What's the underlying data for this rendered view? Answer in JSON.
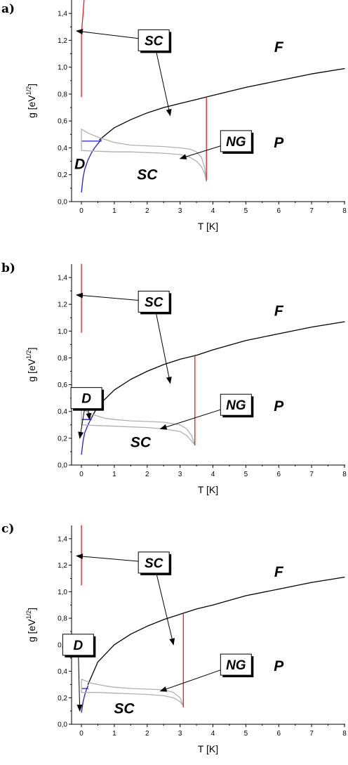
{
  "chart_data": [
    {
      "type": "line",
      "panel_label": "a)",
      "xlabel": "T [K]",
      "ylabel": "g [eV^{1/2}]",
      "xlim": [
        -0.3,
        8
      ],
      "ylim": [
        0,
        1.5
      ],
      "x_ticks": [
        0,
        1,
        2,
        3,
        4,
        5,
        6,
        7,
        8
      ],
      "y_ticks": [
        "0,0",
        "0,2",
        "0,4",
        "0,6",
        "0,8",
        "1,0",
        "1,2",
        "1,4"
      ],
      "series": [
        {
          "color": "#000000",
          "x": [
            0.55,
            1.0,
            1.5,
            2.0,
            2.5,
            3.0,
            3.5,
            4.0,
            5.0,
            6.0,
            7.0,
            8.0
          ],
          "y": [
            0.46,
            0.55,
            0.61,
            0.66,
            0.7,
            0.73,
            0.76,
            0.79,
            0.85,
            0.9,
            0.95,
            0.99
          ]
        },
        {
          "color": "#1f1fcc",
          "x": [
            0.0,
            0.05,
            0.1,
            0.2,
            0.3,
            0.4,
            0.5,
            0.6
          ],
          "y": [
            0.07,
            0.18,
            0.24,
            0.31,
            0.36,
            0.4,
            0.43,
            0.46
          ]
        },
        {
          "color": "#1f1fcc",
          "x": [
            0.0,
            0.6
          ],
          "y": [
            0.45,
            0.45
          ]
        },
        {
          "color": "#b0b0b0",
          "x": [
            0.0,
            0.0,
            0.2,
            0.5,
            1.0,
            1.5,
            2.0,
            2.5,
            3.0,
            3.3,
            3.5,
            3.65,
            3.75,
            3.8
          ],
          "y": [
            0.42,
            0.54,
            0.51,
            0.48,
            0.44,
            0.42,
            0.415,
            0.41,
            0.4,
            0.39,
            0.37,
            0.33,
            0.25,
            0.15
          ]
        },
        {
          "color": "#b0b0b0",
          "x": [
            0.0,
            0.0,
            0.5,
            1.0,
            1.5,
            2.0,
            2.5,
            3.0,
            3.3,
            3.5,
            3.65,
            3.75,
            3.8
          ],
          "y": [
            0.42,
            0.38,
            0.375,
            0.37,
            0.37,
            0.365,
            0.36,
            0.35,
            0.33,
            0.3,
            0.26,
            0.21,
            0.15
          ]
        },
        {
          "color": "#e02020",
          "x": [
            3.8,
            3.8
          ],
          "y": [
            0.16,
            0.77
          ]
        },
        {
          "color": "#e02020",
          "x": [
            0.0,
            0.0,
            0.05,
            0.08
          ],
          "y": [
            0.78,
            1.25,
            1.4,
            1.5
          ]
        }
      ],
      "annotations": [
        {
          "text": "SC",
          "boxed": true,
          "x": 2.2,
          "y": 1.2,
          "arrows_to": [
            [
              -0.15,
              1.27
            ],
            [
              2.7,
              0.64
            ]
          ]
        },
        {
          "text": "NG",
          "boxed": true,
          "x": 4.7,
          "y": 0.45,
          "arrows_to": [
            [
              3.0,
              0.32
            ]
          ]
        },
        {
          "text": "F",
          "boxed": false,
          "x": 6.0,
          "y": 1.15
        },
        {
          "text": "P",
          "boxed": false,
          "x": 6.0,
          "y": 0.44
        },
        {
          "text": "SC",
          "boxed": false,
          "x": 2.0,
          "y": 0.2
        },
        {
          "text": "D",
          "boxed": false,
          "x": -0.05,
          "y": 0.28
        }
      ]
    },
    {
      "type": "line",
      "panel_label": "b)",
      "xlabel": "T [K]",
      "ylabel": "g [eV^{1/2}]",
      "xlim": [
        -0.3,
        8
      ],
      "ylim": [
        0,
        1.5
      ],
      "x_ticks": [
        0,
        1,
        2,
        3,
        4,
        5,
        6,
        7,
        8
      ],
      "y_ticks": [
        "0,0",
        "0,2",
        "0,4",
        "0,6",
        "0,8",
        "1,0",
        "1,2",
        "1,4"
      ],
      "series": [
        {
          "color": "#000000",
          "x": [
            0.3,
            0.5,
            1.0,
            1.5,
            2.0,
            2.5,
            3.0,
            3.5,
            4.0,
            5.0,
            6.0,
            7.0,
            8.0
          ],
          "y": [
            0.35,
            0.44,
            0.56,
            0.64,
            0.7,
            0.75,
            0.79,
            0.82,
            0.86,
            0.93,
            0.98,
            1.03,
            1.07
          ]
        },
        {
          "color": "#1f1fcc",
          "x": [
            0.0,
            0.05,
            0.1,
            0.2,
            0.3
          ],
          "y": [
            0.08,
            0.18,
            0.24,
            0.3,
            0.35
          ]
        },
        {
          "color": "#1f1fcc",
          "x": [
            0.0,
            0.3
          ],
          "y": [
            0.34,
            0.34
          ]
        },
        {
          "color": "#b0b0b0",
          "x": [
            0.0,
            0.0,
            0.3,
            0.7,
            1.0,
            1.5,
            2.0,
            2.5,
            3.0,
            3.2,
            3.35,
            3.45
          ],
          "y": [
            0.3,
            0.42,
            0.38,
            0.35,
            0.34,
            0.33,
            0.325,
            0.32,
            0.3,
            0.27,
            0.22,
            0.15
          ]
        },
        {
          "color": "#b0b0b0",
          "x": [
            0.0,
            0.0,
            0.5,
            1.0,
            1.5,
            2.0,
            2.5,
            3.0,
            3.2,
            3.35,
            3.45
          ],
          "y": [
            0.3,
            0.3,
            0.295,
            0.29,
            0.285,
            0.28,
            0.27,
            0.25,
            0.22,
            0.18,
            0.15
          ]
        },
        {
          "color": "#e02020",
          "x": [
            3.45,
            3.45
          ],
          "y": [
            0.15,
            0.82
          ]
        },
        {
          "color": "#e02020",
          "x": [
            0.0,
            0.0
          ],
          "y": [
            0.99,
            1.5
          ]
        }
      ],
      "annotations": [
        {
          "text": "SC",
          "boxed": true,
          "x": 2.2,
          "y": 1.22,
          "arrows_to": [
            [
              -0.15,
              1.27
            ],
            [
              2.7,
              0.61
            ]
          ]
        },
        {
          "text": "NG",
          "boxed": true,
          "x": 4.7,
          "y": 0.45,
          "arrows_to": [
            [
              2.4,
              0.27
            ]
          ]
        },
        {
          "text": "F",
          "boxed": false,
          "x": 6.0,
          "y": 1.15
        },
        {
          "text": "P",
          "boxed": false,
          "x": 6.0,
          "y": 0.44
        },
        {
          "text": "SC",
          "boxed": false,
          "x": 1.8,
          "y": 0.17
        },
        {
          "text": "D",
          "boxed": true,
          "x": 0.15,
          "y": 0.5,
          "arrows_to": [
            [
              -0.05,
              0.2
            ],
            [
              0.25,
              0.34
            ]
          ]
        }
      ]
    },
    {
      "type": "line",
      "panel_label": "c)",
      "xlabel": "T [K]",
      "ylabel": "g [eV^{1/2}]",
      "xlim": [
        -0.3,
        8
      ],
      "ylim": [
        0,
        1.5
      ],
      "x_ticks": [
        0,
        1,
        2,
        3,
        4,
        5,
        6,
        7,
        8
      ],
      "y_ticks": [
        "0,0",
        "0,2",
        "0,4",
        "0,6",
        "0,8",
        "1,0",
        "1,2",
        "1,4"
      ],
      "series": [
        {
          "color": "#000000",
          "x": [
            0.2,
            0.5,
            1.0,
            1.5,
            2.0,
            2.5,
            3.0,
            3.5,
            4.0,
            5.0,
            6.0,
            7.0,
            8.0
          ],
          "y": [
            0.3,
            0.47,
            0.6,
            0.68,
            0.74,
            0.79,
            0.83,
            0.87,
            0.9,
            0.97,
            1.02,
            1.07,
            1.11
          ]
        },
        {
          "color": "#1f1fcc",
          "x": [
            0.0,
            0.05,
            0.1,
            0.15,
            0.2
          ],
          "y": [
            0.09,
            0.17,
            0.22,
            0.26,
            0.29
          ]
        },
        {
          "color": "#1f1fcc",
          "x": [
            0.0,
            0.2
          ],
          "y": [
            0.27,
            0.27
          ]
        },
        {
          "color": "#b0b0b0",
          "x": [
            0.0,
            0.0,
            0.3,
            0.7,
            1.0,
            1.5,
            2.0,
            2.5,
            2.8,
            3.0,
            3.1
          ],
          "y": [
            0.25,
            0.34,
            0.31,
            0.29,
            0.28,
            0.27,
            0.265,
            0.26,
            0.24,
            0.2,
            0.14
          ]
        },
        {
          "color": "#b0b0b0",
          "x": [
            0.0,
            0.0,
            0.5,
            1.0,
            1.5,
            2.0,
            2.5,
            2.8,
            3.0,
            3.1
          ],
          "y": [
            0.25,
            0.24,
            0.24,
            0.235,
            0.23,
            0.225,
            0.215,
            0.2,
            0.17,
            0.14
          ]
        },
        {
          "color": "#e02020",
          "x": [
            3.1,
            3.1
          ],
          "y": [
            0.13,
            0.83
          ]
        },
        {
          "color": "#e02020",
          "x": [
            0.0,
            0.0
          ],
          "y": [
            1.05,
            1.5
          ]
        }
      ],
      "annotations": [
        {
          "text": "SC",
          "boxed": true,
          "x": 2.2,
          "y": 1.22,
          "arrows_to": [
            [
              -0.15,
              1.27
            ],
            [
              2.8,
              0.6
            ]
          ]
        },
        {
          "text": "NG",
          "boxed": true,
          "x": 4.7,
          "y": 0.45,
          "arrows_to": [
            [
              2.4,
              0.25
            ]
          ]
        },
        {
          "text": "F",
          "boxed": false,
          "x": 6.0,
          "y": 1.15
        },
        {
          "text": "P",
          "boxed": false,
          "x": 6.0,
          "y": 0.44
        },
        {
          "text": "SC",
          "boxed": false,
          "x": 1.3,
          "y": 0.12
        },
        {
          "text": "D",
          "boxed": true,
          "x": -0.1,
          "y": 0.6,
          "arrows_to": [
            [
              -0.05,
              0.1
            ]
          ]
        }
      ]
    }
  ]
}
